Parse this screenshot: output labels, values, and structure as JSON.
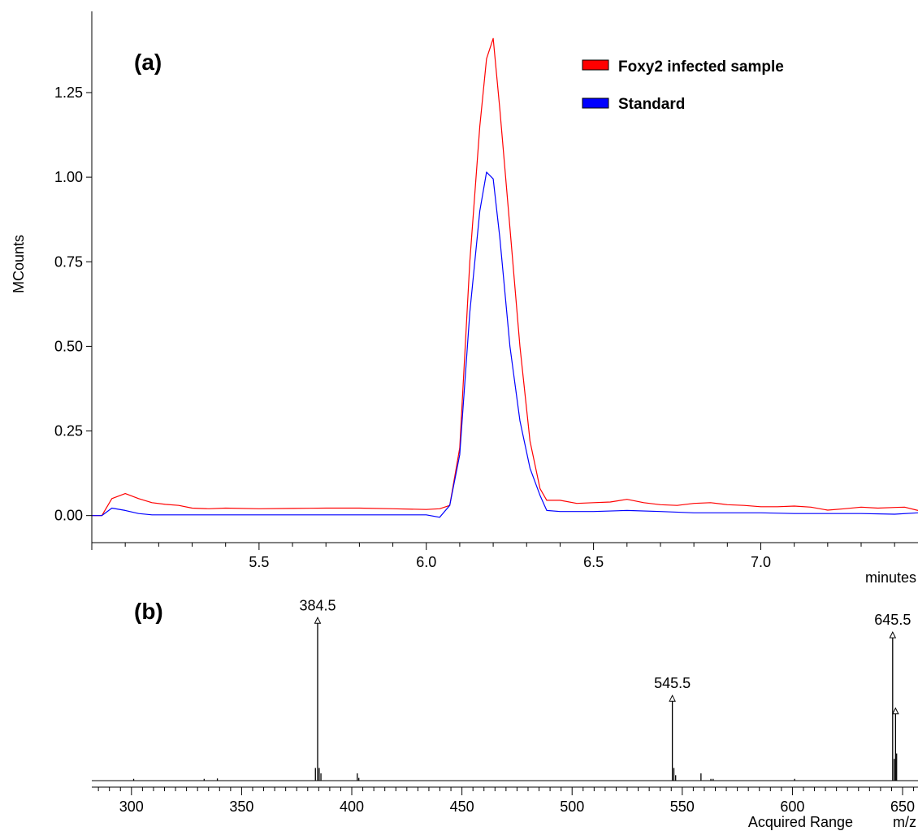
{
  "chart_data": [
    {
      "type": "line",
      "panel_label": "(a)",
      "xlabel": "minutes",
      "ylabel": "MCounts",
      "xlim": [
        5.0,
        7.47
      ],
      "ylim": [
        -0.08,
        1.49
      ],
      "x_ticks": [
        "5.5",
        "6.0",
        "6.5",
        "7.0"
      ],
      "y_ticks": [
        "0.00",
        "0.25",
        "0.50",
        "0.75",
        "1.00",
        "1.25"
      ],
      "legend_position": "top-right",
      "series": [
        {
          "name": "Foxy2 infected sample",
          "color": "#ff0000",
          "x": [
            5.0,
            5.03,
            5.06,
            5.1,
            5.14,
            5.18,
            5.22,
            5.26,
            5.3,
            5.35,
            5.4,
            5.5,
            5.6,
            5.7,
            5.8,
            5.9,
            6.0,
            6.04,
            6.07,
            6.1,
            6.13,
            6.16,
            6.18,
            6.2,
            6.22,
            6.25,
            6.28,
            6.31,
            6.34,
            6.36,
            6.4,
            6.45,
            6.5,
            6.55,
            6.6,
            6.65,
            6.7,
            6.75,
            6.8,
            6.85,
            6.9,
            6.95,
            7.0,
            7.05,
            7.1,
            7.15,
            7.2,
            7.25,
            7.3,
            7.35,
            7.4,
            7.43,
            7.47
          ],
          "y": [
            0.0,
            0.0,
            0.05,
            0.065,
            0.05,
            0.038,
            0.033,
            0.03,
            0.022,
            0.02,
            0.022,
            0.02,
            0.021,
            0.022,
            0.022,
            0.02,
            0.018,
            0.02,
            0.03,
            0.2,
            0.75,
            1.15,
            1.35,
            1.41,
            1.2,
            0.85,
            0.5,
            0.22,
            0.08,
            0.045,
            0.045,
            0.036,
            0.038,
            0.04,
            0.048,
            0.038,
            0.032,
            0.03,
            0.036,
            0.038,
            0.032,
            0.03,
            0.026,
            0.026,
            0.028,
            0.025,
            0.016,
            0.02,
            0.025,
            0.022,
            0.024,
            0.025,
            0.015
          ]
        },
        {
          "name": "Standard",
          "color": "#0000ff",
          "x": [
            5.0,
            5.03,
            5.06,
            5.1,
            5.14,
            5.18,
            5.22,
            5.3,
            5.4,
            5.5,
            5.6,
            5.7,
            5.8,
            5.9,
            6.0,
            6.04,
            6.07,
            6.1,
            6.13,
            6.16,
            6.18,
            6.2,
            6.22,
            6.25,
            6.28,
            6.31,
            6.34,
            6.36,
            6.4,
            6.5,
            6.6,
            6.7,
            6.8,
            6.9,
            7.0,
            7.1,
            7.2,
            7.3,
            7.4,
            7.47
          ],
          "y": [
            0.0,
            0.0,
            0.022,
            0.015,
            0.006,
            0.002,
            0.002,
            0.002,
            0.002,
            0.002,
            0.002,
            0.002,
            0.002,
            0.002,
            0.002,
            -0.005,
            0.03,
            0.18,
            0.6,
            0.9,
            1.015,
            0.995,
            0.82,
            0.5,
            0.28,
            0.14,
            0.06,
            0.015,
            0.012,
            0.012,
            0.015,
            0.012,
            0.008,
            0.008,
            0.008,
            0.006,
            0.006,
            0.006,
            0.004,
            0.008
          ]
        }
      ]
    },
    {
      "type": "bar",
      "panel_label": "(b)",
      "xlabel": "m/z",
      "xlabel2": "Acquired Range",
      "xlim": [
        282,
        657
      ],
      "ylim": [
        0,
        1.0
      ],
      "x_ticks": [
        "300",
        "350",
        "400",
        "450",
        "500",
        "550",
        "600",
        "650"
      ],
      "peak_labels": [
        {
          "text": "384.5",
          "x": 384.5,
          "y": 0.9
        },
        {
          "text": "545.5",
          "x": 545.5,
          "y": 0.47
        },
        {
          "text": "645.5",
          "x": 645.5,
          "y": 0.82
        }
      ],
      "peaks": {
        "x": [
          301,
          333,
          339,
          383.5,
          384.5,
          385.2,
          386,
          402.5,
          403.2,
          545.5,
          546.2,
          547,
          558.5,
          563,
          564,
          601,
          645.5,
          646.2,
          646.8,
          647.3
        ],
        "y": [
          0.01,
          0.01,
          0.012,
          0.07,
          0.9,
          0.07,
          0.04,
          0.04,
          0.015,
          0.47,
          0.07,
          0.03,
          0.04,
          0.01,
          0.01,
          0.01,
          0.82,
          0.12,
          0.4,
          0.15
        ]
      },
      "small_triangle_marker": {
        "x": 646.8,
        "y": 0.4
      }
    }
  ]
}
